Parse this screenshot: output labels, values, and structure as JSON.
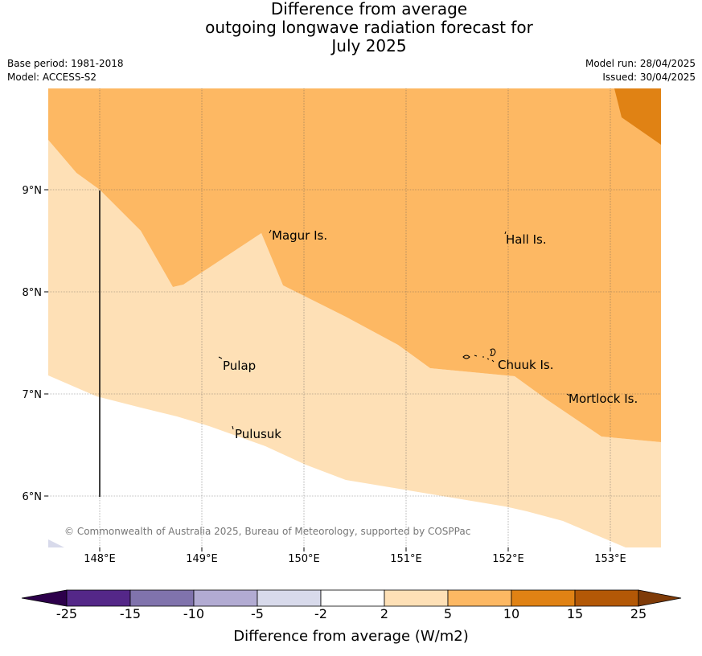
{
  "title": {
    "line1": "Difference from average",
    "line2": "outgoing longwave radiation forecast for",
    "line3": "July 2025"
  },
  "meta": {
    "base_period": "Base period: 1981-2018",
    "model": "Model: ACCESS-S2",
    "model_run": "Model run: 28/04/2025",
    "issued": "Issued: 30/04/2025"
  },
  "map": {
    "lat_labels": [
      "9°N",
      "8°N",
      "7°N",
      "6°N"
    ],
    "lon_labels": [
      "148°E",
      "149°E",
      "150°E",
      "151°E",
      "152°E",
      "153°E"
    ],
    "places": [
      "Magur Is.",
      "Hall Is.",
      "Pulap",
      "Chuuk Is.",
      "Mortlock Is.",
      "Pulusuk"
    ],
    "copyright": "© Commonwealth of Australia 2025, Bureau of Meteorology, supported by COSPPac"
  },
  "colorbar": {
    "label": "Difference from average (W/m2)",
    "ticks": [
      "-25",
      "-15",
      "-10",
      "-5",
      "-2",
      "2",
      "5",
      "10",
      "15",
      "25"
    ],
    "colors": {
      "under": "#2d004b",
      "bins": [
        "#542788",
        "#8073ac",
        "#b2abd2",
        "#d8daeb",
        "#ffffff",
        "#fee0b6",
        "#fdb863",
        "#e08214",
        "#b35806"
      ],
      "over": "#7f3b08"
    }
  }
}
